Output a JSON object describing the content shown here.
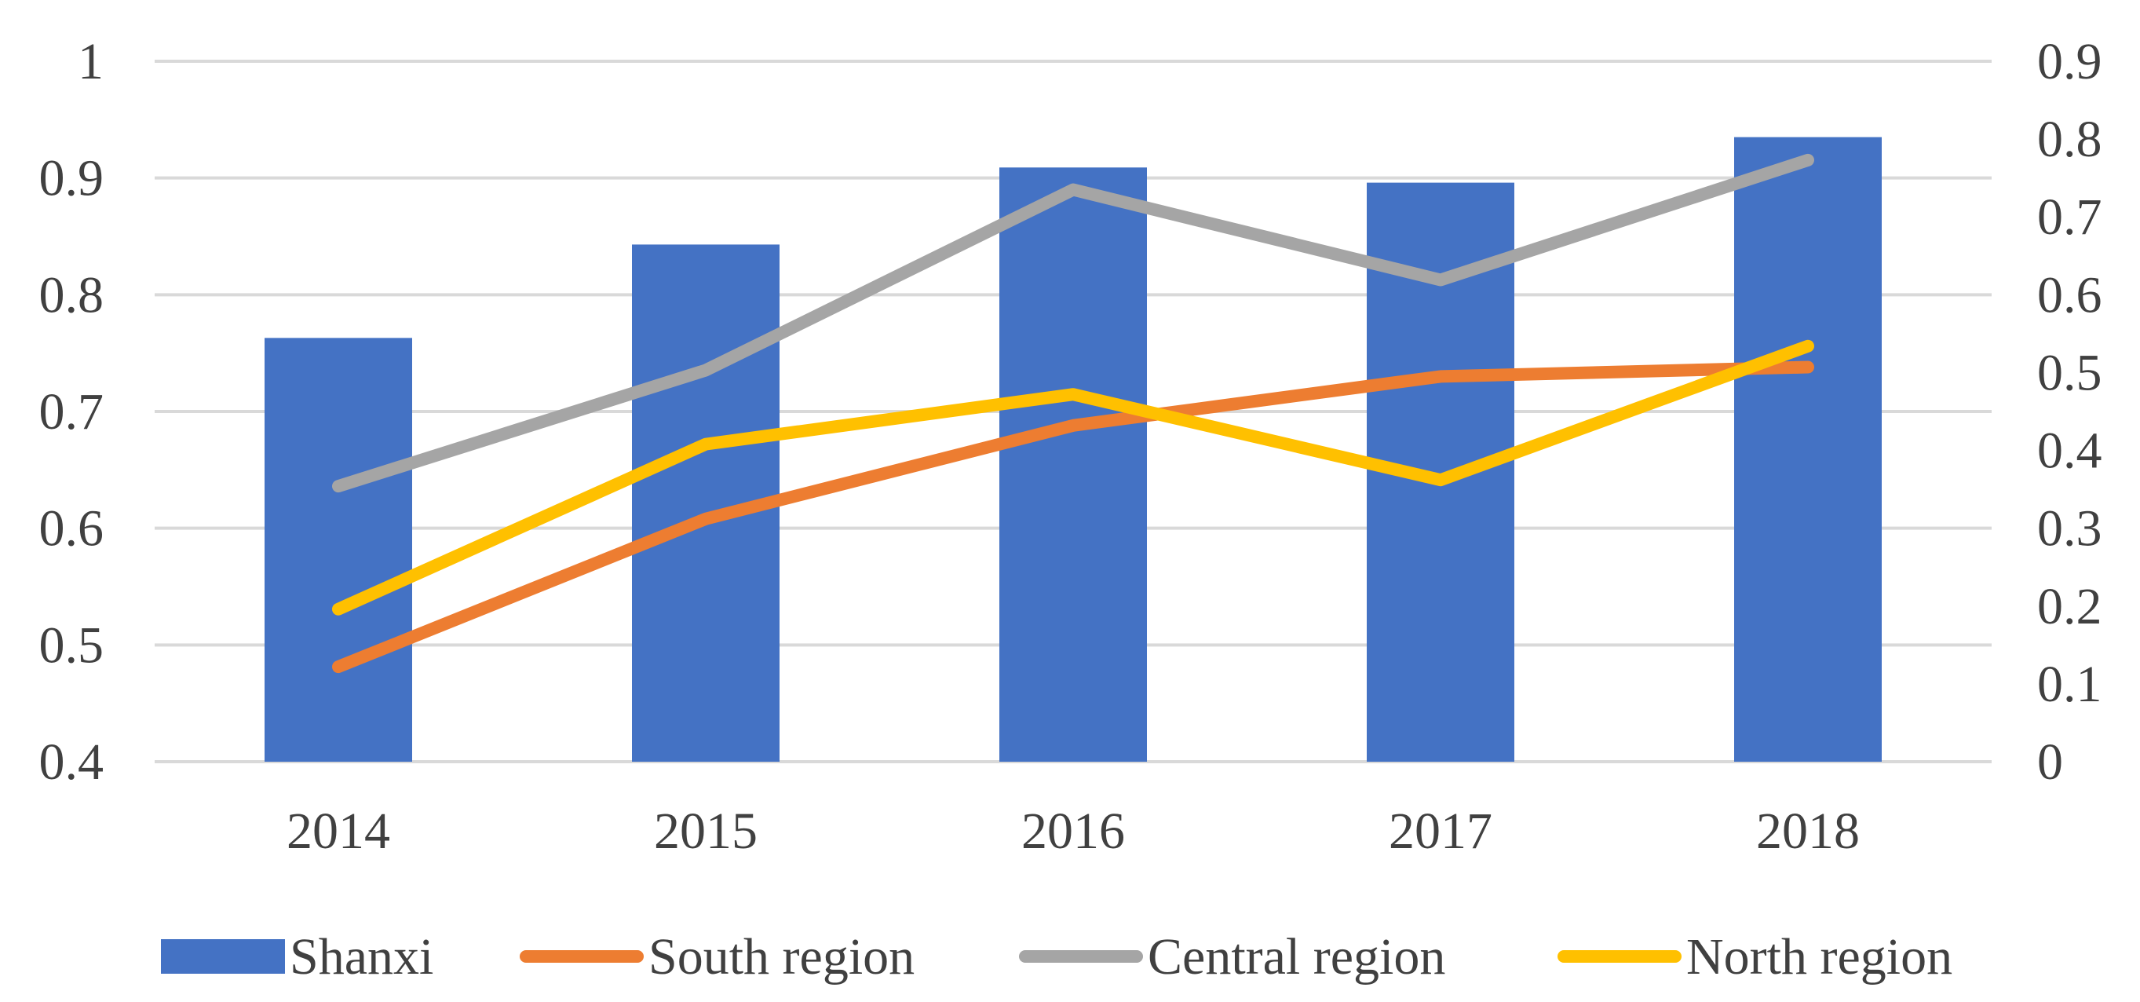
{
  "chart_data": {
    "type": "bar",
    "title": "",
    "categories": [
      "2014",
      "2015",
      "2016",
      "2017",
      "2018"
    ],
    "bar_series": {
      "name": "Shanxi",
      "axis": "left",
      "color": "#4472C4",
      "values": [
        0.763,
        0.843,
        0.909,
        0.896,
        0.935
      ]
    },
    "line_series": [
      {
        "name": "South region",
        "axis": "right",
        "color": "#ED7D31",
        "values": [
          0.122,
          0.312,
          0.432,
          0.495,
          0.507
        ]
      },
      {
        "name": "Central region",
        "axis": "right",
        "color": "#A5A5A5",
        "values": [
          0.354,
          0.503,
          0.735,
          0.619,
          0.773
        ]
      },
      {
        "name": "North region",
        "axis": "right",
        "color": "#FFC000",
        "values": [
          0.196,
          0.408,
          0.472,
          0.362,
          0.534
        ]
      }
    ],
    "y_left": {
      "min": 0.4,
      "max": 1.0,
      "ticks": [
        "0.4",
        "0.5",
        "0.6",
        "0.7",
        "0.8",
        "0.9",
        "1"
      ]
    },
    "y_right": {
      "min": 0,
      "max": 0.9,
      "ticks": [
        "0",
        "0.1",
        "0.2",
        "0.3",
        "0.4",
        "0.5",
        "0.6",
        "0.7",
        "0.8",
        "0.9"
      ]
    },
    "grid": true,
    "legend": "bottom",
    "gridColor": "#D9D9D9",
    "textColor": "#404040"
  }
}
